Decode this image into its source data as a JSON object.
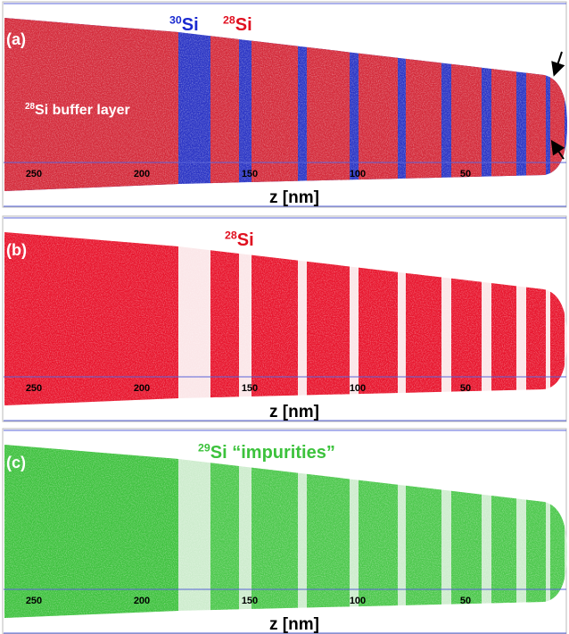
{
  "panels": [
    {
      "label": "(a)",
      "annotations": [
        {
          "mass": "30",
          "element": "Si"
        },
        {
          "mass": "28",
          "element": "Si"
        },
        {
          "mass": "28",
          "element": "Si buffer layer"
        }
      ],
      "ticks": [
        250,
        200,
        150,
        100,
        50
      ],
      "axis_label": "z [nm]"
    },
    {
      "label": "(b)",
      "annotations": [
        {
          "mass": "28",
          "element": "Si"
        }
      ],
      "ticks": [
        250,
        200,
        150,
        100,
        50
      ],
      "axis_label": "z [nm]"
    },
    {
      "label": "(c)",
      "annotations": [
        {
          "mass": "29",
          "element": "Si “impurities”"
        }
      ],
      "ticks": [
        250,
        200,
        150,
        100,
        50
      ],
      "axis_label": "z [nm]"
    }
  ]
}
